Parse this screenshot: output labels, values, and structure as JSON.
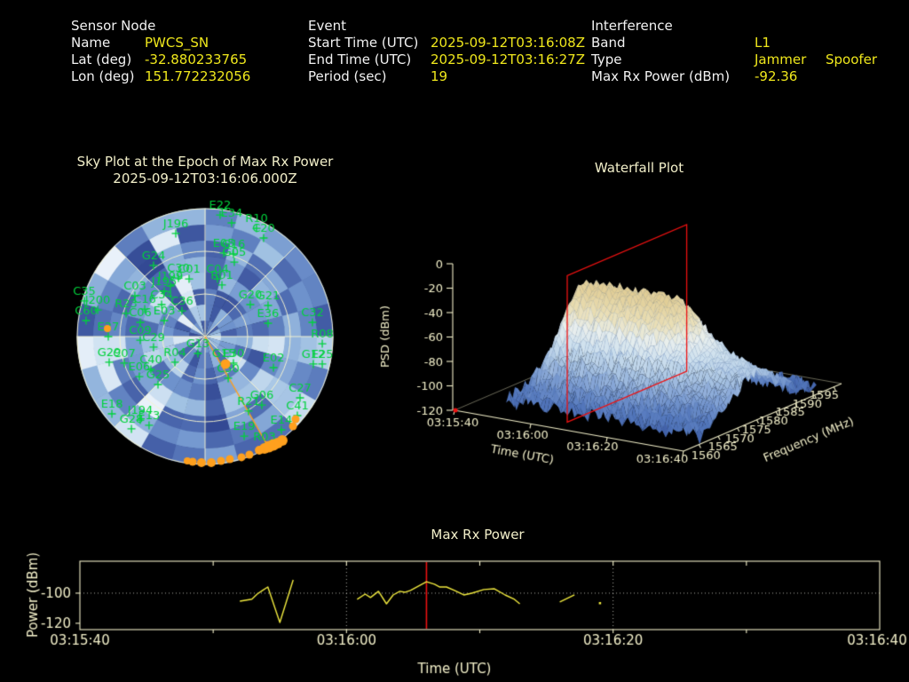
{
  "header": {
    "sensor": {
      "title": "Sensor Node",
      "rows": [
        {
          "label": "Name",
          "value": "PWCS_SN"
        },
        {
          "label": "Lat (deg)",
          "value": "-32.880233765"
        },
        {
          "label": "Lon (deg)",
          "value": "151.772232056"
        }
      ]
    },
    "event": {
      "title": "Event",
      "rows": [
        {
          "label": "Start Time (UTC)",
          "value": "2025-09-12T03:16:08Z"
        },
        {
          "label": "End Time (UTC)",
          "value": "2025-09-12T03:16:27Z"
        },
        {
          "label": "Period (sec)",
          "value": "19"
        }
      ]
    },
    "interference": {
      "title": "Interference",
      "rows": [
        {
          "label": "Band",
          "value": "L1",
          "value2": ""
        },
        {
          "label": "Type",
          "value": "Jammer",
          "value2": "Spoofer"
        },
        {
          "label": "Max Rx Power (dBm)",
          "value": "-92.36",
          "value2": ""
        }
      ]
    }
  },
  "colors": {
    "background": "#000000",
    "label_text": "#f2f2f2",
    "value_text": "#efe71c",
    "axis_cream": "#f2efc9",
    "satellite_green": "#00d23c",
    "interference_orange": "#ffa01e",
    "epoch_red": "#ee1111",
    "trace_yellow": "#efe83e"
  },
  "chart_data": [
    {
      "type": "skyplot",
      "title": "Sky Plot at the Epoch of Max Rx Power",
      "subtitle": "2025-09-12T03:16:06.000Z",
      "rings_elevation_deg": [
        0,
        30,
        60
      ],
      "spoke_azimuth_step_deg": 45,
      "note": "satellites: [id, x, y] offsets from zenith in outer-radius units (north up, east right); elevation = 90*(1-sqrt(x^2+y^2))",
      "satellites": [
        [
          "E22",
          0.118,
          -0.951
        ],
        [
          "E34",
          0.208,
          -0.889
        ],
        [
          "R10",
          0.403,
          -0.847
        ],
        [
          "C20",
          0.458,
          -0.771
        ],
        [
          "J196",
          -0.229,
          -0.806
        ],
        [
          "G24",
          -0.403,
          -0.556
        ],
        [
          "E05",
          0.146,
          -0.653
        ],
        [
          "G16",
          0.222,
          -0.646
        ],
        [
          "G05",
          0.229,
          -0.583
        ],
        [
          "C04",
          0.097,
          -0.451
        ],
        [
          "R01",
          0.132,
          -0.403
        ],
        [
          "C01",
          -0.125,
          -0.451
        ],
        [
          "C30",
          -0.208,
          -0.458
        ],
        [
          "J195",
          -0.319,
          -0.354
        ],
        [
          "J199",
          -0.271,
          -0.396
        ],
        [
          "C03",
          -0.549,
          -0.319
        ],
        [
          "C34",
          -0.34,
          -0.25
        ],
        [
          "C16",
          -0.472,
          -0.215
        ],
        [
          "C36",
          -0.181,
          -0.201
        ],
        [
          "G20",
          0.354,
          -0.25
        ],
        [
          "G21",
          0.493,
          -0.243
        ],
        [
          "E36",
          0.493,
          -0.104
        ],
        [
          "C32",
          0.84,
          -0.111
        ],
        [
          "C35",
          -0.944,
          -0.278
        ],
        [
          "J200",
          -0.84,
          -0.208
        ],
        [
          "C60",
          -0.931,
          -0.125
        ],
        [
          "R23",
          -0.618,
          -0.181
        ],
        [
          "C06",
          -0.507,
          -0.111
        ],
        [
          "E03",
          -0.319,
          -0.125
        ],
        [
          "E27",
          -0.757,
          0.0
        ],
        [
          "C09",
          -0.507,
          0.028
        ],
        [
          "C29",
          -0.403,
          0.083
        ],
        [
          "R08",
          0.917,
          0.056
        ],
        [
          "G29",
          -0.75,
          0.201
        ],
        [
          "C07",
          -0.632,
          0.208
        ],
        [
          "C40",
          -0.424,
          0.257
        ],
        [
          "E06",
          -0.514,
          0.313
        ],
        [
          "G25",
          -0.368,
          0.375
        ],
        [
          "G13",
          -0.056,
          0.132
        ],
        [
          "R04",
          -0.236,
          0.201
        ],
        [
          "G15",
          0.146,
          0.208
        ],
        [
          "E30",
          0.222,
          0.208
        ],
        [
          "C50",
          0.181,
          0.326
        ],
        [
          "E02",
          0.535,
          0.243
        ],
        [
          "G12",
          0.847,
          0.215
        ],
        [
          "E25",
          0.917,
          0.215
        ],
        [
          "C27",
          0.743,
          0.479
        ],
        [
          "G06",
          0.444,
          0.535
        ],
        [
          "C41",
          0.722,
          0.618
        ],
        [
          "R21",
          0.34,
          0.583
        ],
        [
          "E14",
          0.597,
          0.729
        ],
        [
          "E19",
          0.306,
          0.778
        ],
        [
          "R03",
          0.465,
          0.861
        ],
        [
          "E18",
          -0.729,
          0.604
        ],
        [
          "J194",
          -0.507,
          0.653
        ],
        [
          "G28",
          -0.576,
          0.722
        ],
        [
          "E13",
          -0.438,
          0.694
        ]
      ],
      "interference_track": {
        "line_to": {
          "x": 0.486,
          "y": 0.847
        },
        "dots": [
          [
            0.688,
            0.701,
            4.5
          ],
          [
            0.708,
            0.646,
            4.5
          ],
          [
            0.604,
            0.813,
            6
          ],
          [
            0.569,
            0.833,
            6
          ],
          [
            0.535,
            0.847,
            6.5
          ],
          [
            0.5,
            0.861,
            6.5
          ],
          [
            0.465,
            0.875,
            6
          ],
          [
            0.424,
            0.889,
            5
          ],
          [
            0.347,
            0.924,
            4.5
          ],
          [
            0.285,
            0.944,
            4.5
          ],
          [
            0.194,
            0.958,
            4.5
          ],
          [
            0.125,
            0.972,
            4.5
          ],
          [
            0.049,
            0.986,
            5
          ],
          [
            -0.028,
            0.986,
            5
          ],
          [
            -0.097,
            0.979,
            4.5
          ],
          [
            -0.139,
            0.972,
            4
          ],
          [
            0.16,
            0.215,
            5.5
          ],
          [
            -0.764,
            -0.063,
            4
          ]
        ]
      }
    },
    {
      "type": "surface",
      "title": "Waterfall Plot",
      "xlabel": "Time (UTC)",
      "ylabel": "Frequency (MHz)",
      "zlabel": "PSD (dBm)",
      "time_ticks": [
        {
          "s": 0,
          "label": "03:15:40"
        },
        {
          "s": 20,
          "label": "03:16:00"
        },
        {
          "s": 40,
          "label": "03:16:20"
        },
        {
          "s": 60,
          "label": "03:16:40"
        }
      ],
      "freq_ticks": [
        1560,
        1565,
        1570,
        1575,
        1580,
        1585,
        1590,
        1595
      ],
      "psd_ticks": [
        0,
        -20,
        -40,
        -60,
        -80,
        -100,
        -120
      ],
      "time_axis_range_s": [
        0,
        60
      ],
      "freq_axis_range_mhz": [
        1556,
        1597
      ],
      "psd_range_dbm": [
        -120,
        0
      ],
      "surface_model": {
        "time_start_s": 10,
        "time_end_s": 60,
        "freq_start_mhz": 1559.5,
        "freq_end_mhz": 1590.5,
        "baseline_dbm": -113,
        "peak_dbm": -30,
        "peak_freq_mhz": 1574.5,
        "freq_sigma_mhz": 8.5,
        "event_window_s": [
          11,
          40
        ]
      },
      "epoch_marker": {
        "time_s": 26,
        "color": "#ee1111"
      }
    },
    {
      "type": "line",
      "title": "Max Rx Power",
      "xlabel": "Time (UTC)",
      "ylabel": "Power (dBm)",
      "x_ticks": [
        {
          "s": 0,
          "label": "03:15:40"
        },
        {
          "s": 20,
          "label": "03:16:00"
        },
        {
          "s": 40,
          "label": "03:16:20"
        },
        {
          "s": 60,
          "label": "03:16:40"
        }
      ],
      "y_ticks": [
        -100,
        -120
      ],
      "y_range": [
        -124.2,
        -78.8
      ],
      "epoch_line_s": 26,
      "grid_h_dbm": -100,
      "grid_v_s": [
        20,
        40
      ],
      "segments": [
        [
          [
            12,
            -105.3
          ],
          [
            12.9,
            -104
          ],
          [
            13.3,
            -100.6
          ],
          [
            13.7,
            -98.2
          ],
          [
            14.1,
            -95.9
          ],
          [
            15,
            -119.5
          ],
          [
            16,
            -91.2
          ]
        ],
        [
          [
            20.8,
            -104.1
          ],
          [
            21.4,
            -100.6
          ],
          [
            21.8,
            -102.9
          ],
          [
            22.4,
            -98.8
          ],
          [
            23,
            -107.1
          ],
          [
            23.5,
            -101.2
          ],
          [
            24,
            -98.8
          ],
          [
            24.4,
            -99.4
          ],
          [
            24.8,
            -98.2
          ],
          [
            26,
            -92.4
          ],
          [
            26.6,
            -94.1
          ],
          [
            27,
            -95.9
          ],
          [
            27.5,
            -95.9
          ],
          [
            28.1,
            -98.2
          ],
          [
            28.8,
            -101.2
          ],
          [
            29.4,
            -100
          ],
          [
            30.3,
            -97.6
          ],
          [
            31.1,
            -97.1
          ],
          [
            31.9,
            -101.2
          ],
          [
            32.6,
            -104.1
          ],
          [
            33,
            -107.1
          ]
        ],
        [
          [
            36,
            -105.9
          ],
          [
            37.1,
            -101.2
          ]
        ],
        [
          [
            39,
            -106.5
          ]
        ]
      ]
    }
  ]
}
